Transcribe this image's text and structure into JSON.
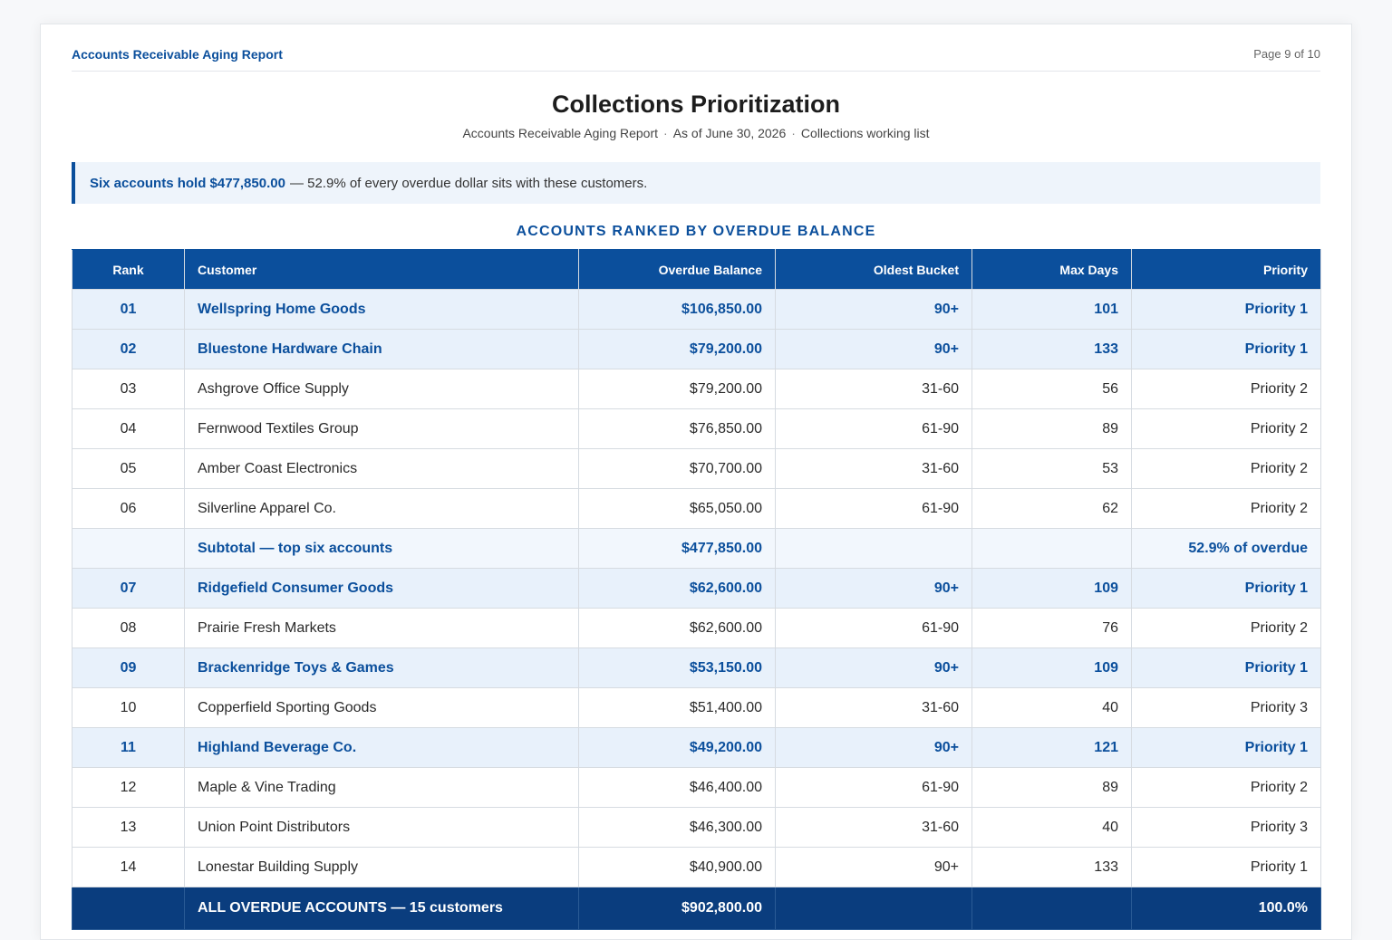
{
  "header": {
    "report_name": "Accounts Receivable Aging Report",
    "page_label": "Page 9 of 10"
  },
  "title": "Collections Prioritization",
  "subtitle": {
    "report": "Accounts Receivable Aging Report",
    "as_of": "As of June 30, 2026",
    "list": "Collections working list",
    "separator": "·"
  },
  "callout": {
    "highlight": "Six accounts hold $477,850.00",
    "text": "— 52.9% of every overdue dollar sits with these customers."
  },
  "section_title": "ACCOUNTS RANKED BY OVERDUE BALANCE",
  "table": {
    "columns": [
      "Rank",
      "Customer",
      "Overdue Balance",
      "Oldest Bucket",
      "Max Days",
      "Priority"
    ],
    "rows": [
      {
        "rank": "01",
        "customer": "Wellspring Home Goods",
        "balance": "$106,850.00",
        "bucket": "90+",
        "days": "101",
        "priority": "Priority 1",
        "style": "p1"
      },
      {
        "rank": "02",
        "customer": "Bluestone Hardware Chain",
        "balance": "$79,200.00",
        "bucket": "90+",
        "days": "133",
        "priority": "Priority 1",
        "style": "p1"
      },
      {
        "rank": "03",
        "customer": "Ashgrove Office Supply",
        "balance": "$79,200.00",
        "bucket": "31-60",
        "days": "56",
        "priority": "Priority 2",
        "style": "normal"
      },
      {
        "rank": "04",
        "customer": "Fernwood Textiles Group",
        "balance": "$76,850.00",
        "bucket": "61-90",
        "days": "89",
        "priority": "Priority 2",
        "style": "normal"
      },
      {
        "rank": "05",
        "customer": "Amber Coast Electronics",
        "balance": "$70,700.00",
        "bucket": "31-60",
        "days": "53",
        "priority": "Priority 2",
        "style": "normal"
      },
      {
        "rank": "06",
        "customer": "Silverline Apparel Co.",
        "balance": "$65,050.00",
        "bucket": "61-90",
        "days": "62",
        "priority": "Priority 2",
        "style": "normal"
      },
      {
        "rank": "",
        "customer": "Subtotal — top six accounts",
        "balance": "$477,850.00",
        "bucket": "",
        "days": "",
        "priority": "52.9% of overdue",
        "style": "sub"
      },
      {
        "rank": "07",
        "customer": "Ridgefield Consumer Goods",
        "balance": "$62,600.00",
        "bucket": "90+",
        "days": "109",
        "priority": "Priority 1",
        "style": "p1"
      },
      {
        "rank": "08",
        "customer": "Prairie Fresh Markets",
        "balance": "$62,600.00",
        "bucket": "61-90",
        "days": "76",
        "priority": "Priority 2",
        "style": "normal"
      },
      {
        "rank": "09",
        "customer": "Brackenridge Toys & Games",
        "balance": "$53,150.00",
        "bucket": "90+",
        "days": "109",
        "priority": "Priority 1",
        "style": "p1"
      },
      {
        "rank": "10",
        "customer": "Copperfield Sporting Goods",
        "balance": "$51,400.00",
        "bucket": "31-60",
        "days": "40",
        "priority": "Priority 3",
        "style": "normal"
      },
      {
        "rank": "11",
        "customer": "Highland Beverage Co.",
        "balance": "$49,200.00",
        "bucket": "90+",
        "days": "121",
        "priority": "Priority 1",
        "style": "p1"
      },
      {
        "rank": "12",
        "customer": "Maple & Vine Trading",
        "balance": "$46,400.00",
        "bucket": "61-90",
        "days": "89",
        "priority": "Priority 2",
        "style": "normal"
      },
      {
        "rank": "13",
        "customer": "Union Point Distributors",
        "balance": "$46,300.00",
        "bucket": "31-60",
        "days": "40",
        "priority": "Priority 3",
        "style": "normal"
      },
      {
        "rank": "14",
        "customer": "Lonestar Building Supply",
        "balance": "$40,900.00",
        "bucket": "90+",
        "days": "133",
        "priority": "Priority 1",
        "style": "normal"
      }
    ],
    "total": {
      "rank": "",
      "customer": "ALL OVERDUE ACCOUNTS — 15 customers",
      "balance": "$902,800.00",
      "bucket": "",
      "days": "",
      "priority": "100.0%"
    }
  },
  "colors": {
    "brand_blue": "#0b4f9c",
    "total_row": "#0a3d7e",
    "priority1_row": "#e8f1fb"
  }
}
